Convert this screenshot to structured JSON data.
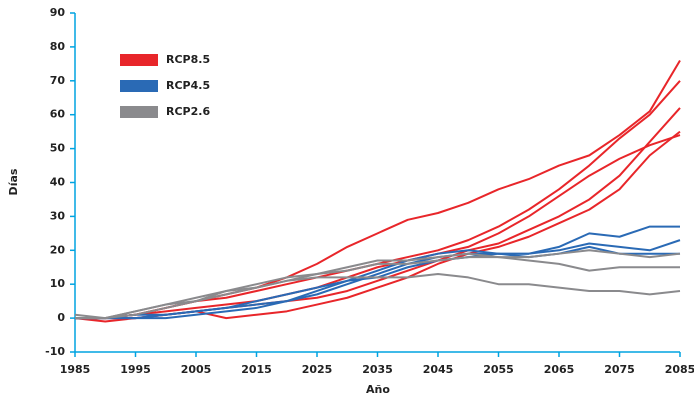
{
  "chart_data": {
    "type": "line",
    "x_label": "Año",
    "y_label": "Días",
    "x": [
      1985,
      1990,
      1995,
      2000,
      2005,
      2010,
      2015,
      2020,
      2025,
      2030,
      2035,
      2040,
      2045,
      2050,
      2055,
      2060,
      2065,
      2070,
      2075,
      2080,
      2085
    ],
    "xlim": [
      1985,
      2085
    ],
    "xticks": [
      1985,
      1995,
      2005,
      2015,
      2025,
      2035,
      2045,
      2055,
      2065,
      2075,
      2085
    ],
    "ylim": [
      -10,
      90
    ],
    "yticks": [
      -10,
      0,
      10,
      20,
      30,
      40,
      50,
      60,
      70,
      80,
      90
    ],
    "legend": "upper left",
    "series": [
      {
        "name": "RCP8.5",
        "color": "#e8262a",
        "values": [
          [
            0,
            0,
            1,
            3,
            5,
            7,
            9,
            12,
            16,
            21,
            25,
            29,
            31,
            34,
            38,
            41,
            45,
            48,
            54,
            61,
            76
          ],
          [
            0,
            0,
            1,
            3,
            5,
            6,
            8,
            10,
            12,
            14,
            16,
            18,
            20,
            23,
            27,
            32,
            38,
            45,
            53,
            60,
            70
          ],
          [
            0,
            0,
            0,
            1,
            2,
            3,
            4,
            5,
            6,
            8,
            11,
            14,
            17,
            20,
            22,
            26,
            30,
            35,
            42,
            52,
            62
          ],
          [
            0,
            -1,
            0,
            1,
            2,
            0,
            1,
            2,
            4,
            6,
            9,
            12,
            16,
            19,
            21,
            24,
            28,
            32,
            38,
            48,
            55
          ],
          [
            0,
            0,
            1,
            2,
            3,
            4,
            5,
            7,
            9,
            12,
            15,
            17,
            19,
            21,
            25,
            30,
            36,
            42,
            47,
            51,
            54
          ]
        ]
      },
      {
        "name": "RCP4.5",
        "color": "#2a6ab5",
        "values": [
          [
            0,
            0,
            0,
            1,
            2,
            3,
            4,
            5,
            7,
            10,
            13,
            16,
            18,
            19,
            19,
            19,
            21,
            25,
            24,
            27,
            27
          ],
          [
            0,
            0,
            0,
            0,
            1,
            2,
            3,
            5,
            8,
            11,
            14,
            17,
            19,
            20,
            19,
            19,
            20,
            22,
            21,
            20,
            23
          ],
          [
            0,
            0,
            1,
            1,
            2,
            3,
            5,
            7,
            9,
            11,
            12,
            15,
            17,
            18,
            19,
            18,
            19,
            21,
            19,
            19,
            19
          ]
        ]
      },
      {
        "name": "RCP2.6",
        "color": "#8a8a8d",
        "values": [
          [
            0,
            0,
            2,
            4,
            6,
            8,
            10,
            12,
            13,
            15,
            17,
            17,
            18,
            19,
            18,
            18,
            19,
            20,
            19,
            18,
            19
          ],
          [
            1,
            0,
            2,
            4,
            5,
            8,
            9,
            11,
            13,
            14,
            16,
            16,
            17,
            18,
            18,
            17,
            16,
            14,
            15,
            15,
            15
          ],
          [
            0,
            0,
            1,
            3,
            5,
            7,
            9,
            11,
            12,
            12,
            12,
            12,
            13,
            12,
            10,
            10,
            9,
            8,
            8,
            7,
            8
          ]
        ]
      }
    ]
  }
}
